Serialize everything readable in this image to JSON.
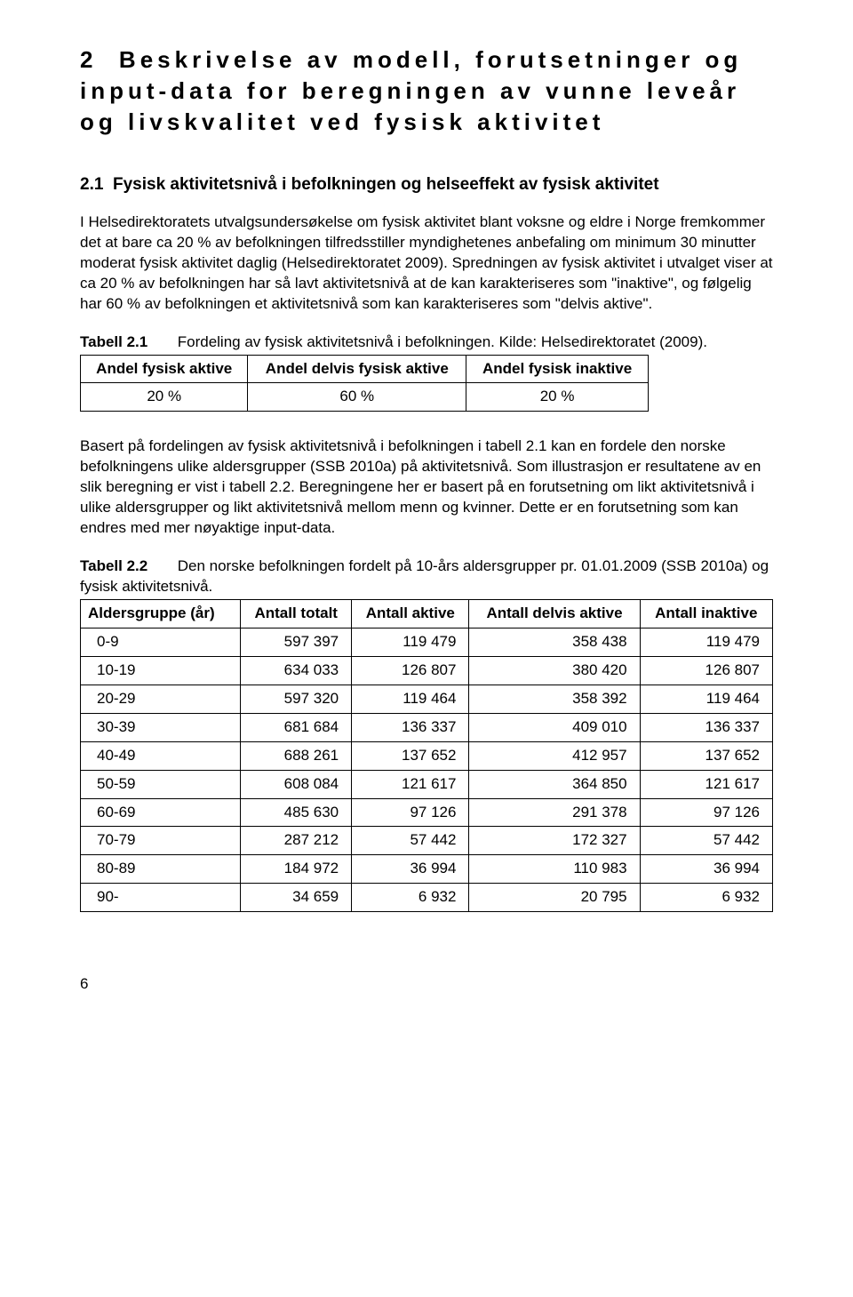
{
  "section": {
    "number": "2",
    "title": "Beskrivelse av modell, forutsetninger og input-data for beregningen av vunne leveår og livskvalitet ved fysisk aktivitet"
  },
  "subsection": {
    "number": "2.1",
    "title": "Fysisk aktivitetsnivå i befolkningen og helseeffekt av fysisk aktivitet"
  },
  "para1": "I Helsedirektoratets utvalgsundersøkelse om fysisk aktivitet blant voksne og eldre i Norge fremkommer det at bare ca 20 % av befolkningen tilfredsstiller myndighetenes anbefaling om minimum 30 minutter moderat fysisk aktivitet daglig (Helsedirektoratet 2009). Spredningen av fysisk aktivitet i utvalget viser at ca 20 % av befolkningen har så lavt aktivitetsnivå at de kan karakteriseres som \"inaktive\", og følgelig har 60 % av befolkningen et aktivitetsnivå som kan karakteriseres som \"delvis aktive\".",
  "table1": {
    "label": "Tabell 2.1",
    "caption": "Fordeling av fysisk aktivitetsnivå i befolkningen. Kilde: Helsedirektoratet (2009).",
    "headers": [
      "Andel fysisk aktive",
      "Andel delvis fysisk aktive",
      "Andel fysisk inaktive"
    ],
    "row": [
      "20 %",
      "60 %",
      "20 %"
    ]
  },
  "para2": "Basert på fordelingen av fysisk aktivitetsnivå i befolkningen i tabell 2.1 kan en fordele den norske befolkningens ulike aldersgrupper (SSB 2010a) på aktivitetsnivå.   Som illustrasjon er resultatene av en slik beregning er vist i tabell 2.2. Beregningene her er basert på en forutsetning om likt aktivitetsnivå i ulike aldersgrupper og likt aktivitetsnivå mellom menn og kvinner. Dette er en forutsetning som kan endres med mer nøyaktige input-data.",
  "table2": {
    "label": "Tabell 2.2",
    "caption": "Den norske befolkningen fordelt på 10-års aldersgrupper pr. 01.01.2009 (SSB 2010a) og fysisk aktivitetsnivå.",
    "headers": [
      "Aldersgruppe (år)",
      "Antall totalt",
      "Antall aktive",
      "Antall delvis aktive",
      "Antall inaktive"
    ],
    "rows": [
      [
        "0-9",
        "597 397",
        "119 479",
        "358 438",
        "119 479"
      ],
      [
        "10-19",
        "634 033",
        "126 807",
        "380 420",
        "126 807"
      ],
      [
        "20-29",
        "597 320",
        "119 464",
        "358 392",
        "119 464"
      ],
      [
        "30-39",
        "681 684",
        "136 337",
        "409 010",
        "136 337"
      ],
      [
        "40-49",
        "688 261",
        "137 652",
        "412 957",
        "137 652"
      ],
      [
        "50-59",
        "608 084",
        "121 617",
        "364 850",
        "121 617"
      ],
      [
        "60-69",
        "485 630",
        "97 126",
        "291 378",
        "97 126"
      ],
      [
        "70-79",
        "287 212",
        "57 442",
        "172 327",
        "57 442"
      ],
      [
        "80-89",
        "184 972",
        "36 994",
        "110 983",
        "36 994"
      ],
      [
        "90-",
        "34 659",
        "6 932",
        "20 795",
        "6 932"
      ]
    ]
  },
  "pageNumber": "6"
}
